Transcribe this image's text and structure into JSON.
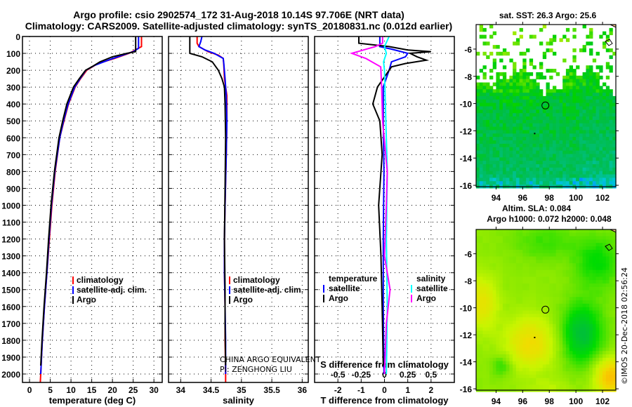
{
  "title_line1": "Argo profile: csio 2902574_172 31-Aug-2018 10.14S 97.706E (NRT data)",
  "title_line2": "Climatology: CARS2009. Satellite-adjusted climatology: synTS_20180831.nc (0.012d earlier)",
  "colors": {
    "climatology": "#ff0000",
    "satellite": "#0000ff",
    "argo": "#000000",
    "sal_satellite": "#00ffff",
    "sal_argo": "#ff00ff"
  },
  "chart_data": [
    {
      "type": "line",
      "id": "temperature",
      "xlabel": "temperature (deg C)",
      "ylabel": "depth",
      "xlim": [
        -1.7,
        32
      ],
      "ylim": [
        2050,
        0
      ],
      "xticks": [
        0,
        5,
        10,
        15,
        20,
        25,
        30
      ],
      "yticks": [
        0,
        100,
        200,
        300,
        400,
        500,
        600,
        700,
        800,
        900,
        1000,
        1100,
        1200,
        1300,
        1400,
        1500,
        1600,
        1700,
        1800,
        1900,
        2000
      ],
      "grid": true,
      "legend": {
        "placement": "lower-middle",
        "entries": [
          "climatology",
          "satellite-adj. clim.",
          "Argo"
        ]
      },
      "series": [
        {
          "name": "climatology",
          "color_key": "climatology",
          "points": [
            [
              0,
              27.0
            ],
            [
              60,
              27.0
            ],
            [
              80,
              25.5
            ],
            [
              100,
              24.0
            ],
            [
              130,
              20.5
            ],
            [
              160,
              16.5
            ],
            [
              200,
              13.8
            ],
            [
              250,
              12.3
            ],
            [
              300,
              11.0
            ],
            [
              400,
              9.4
            ],
            [
              500,
              8.3
            ],
            [
              600,
              7.3
            ],
            [
              800,
              6.2
            ],
            [
              1000,
              5.4
            ],
            [
              1200,
              4.8
            ],
            [
              1400,
              4.2
            ],
            [
              1600,
              3.6
            ],
            [
              1800,
              3.1
            ],
            [
              2000,
              2.7
            ],
            [
              2050,
              2.6
            ]
          ]
        },
        {
          "name": "satellite-adj. clim.",
          "color_key": "satellite",
          "points": [
            [
              0,
              26.3
            ],
            [
              70,
              26.3
            ],
            [
              90,
              25.0
            ],
            [
              110,
              22.5
            ],
            [
              140,
              19.0
            ],
            [
              170,
              15.8
            ],
            [
              200,
              13.6
            ],
            [
              250,
              12.2
            ],
            [
              300,
              10.9
            ],
            [
              400,
              9.3
            ],
            [
              500,
              8.2
            ],
            [
              600,
              7.3
            ],
            [
              800,
              6.1
            ],
            [
              1000,
              5.3
            ],
            [
              1200,
              4.7
            ],
            [
              1400,
              4.2
            ],
            [
              1600,
              3.6
            ],
            [
              1800,
              3.1
            ],
            [
              2000,
              2.7
            ]
          ]
        },
        {
          "name": "Argo",
          "color_key": "argo",
          "points": [
            [
              0,
              25.6
            ],
            [
              90,
              25.6
            ],
            [
              100,
              23.5
            ],
            [
              120,
              20.0
            ],
            [
              150,
              17.0
            ],
            [
              180,
              15.0
            ],
            [
              200,
              13.5
            ],
            [
              250,
              12.0
            ],
            [
              300,
              10.6
            ],
            [
              400,
              9.0
            ],
            [
              500,
              8.0
            ],
            [
              600,
              7.1
            ],
            [
              800,
              6.0
            ],
            [
              1000,
              5.2
            ],
            [
              1200,
              4.6
            ],
            [
              1400,
              4.1
            ],
            [
              1600,
              3.5
            ],
            [
              1800,
              3.0
            ],
            [
              1950,
              2.7
            ]
          ]
        }
      ]
    },
    {
      "type": "line",
      "id": "salinity",
      "xlabel": "salinity",
      "xlim": [
        33.8,
        36.1
      ],
      "ylim": [
        2050,
        0
      ],
      "xticks": [
        34,
        34.5,
        35,
        35.5,
        36
      ],
      "grid": true,
      "legend": {
        "placement": "lower-right",
        "entries": [
          "climatology",
          "satellite-adj. clim.",
          "Argo"
        ]
      },
      "annotation": [
        "CHINA ARGO EQUIVALENT",
        "PI: ZENGHONG LIU"
      ],
      "series": [
        {
          "name": "climatology",
          "color_key": "climatology",
          "points": [
            [
              0,
              34.27
            ],
            [
              40,
              34.27
            ],
            [
              60,
              34.3
            ],
            [
              90,
              34.45
            ],
            [
              110,
              34.62
            ],
            [
              130,
              34.7
            ],
            [
              170,
              34.71
            ],
            [
              250,
              34.72
            ],
            [
              350,
              34.76
            ],
            [
              500,
              34.76
            ],
            [
              700,
              34.75
            ],
            [
              1000,
              34.73
            ],
            [
              1200,
              34.72
            ],
            [
              1400,
              34.72
            ],
            [
              1600,
              34.73
            ],
            [
              1800,
              34.73
            ],
            [
              2000,
              34.74
            ],
            [
              2050,
              34.74
            ]
          ]
        },
        {
          "name": "satellite-adj. clim.",
          "color_key": "satellite",
          "points": [
            [
              0,
              34.35
            ],
            [
              30,
              34.33
            ],
            [
              60,
              34.3
            ],
            [
              80,
              34.4
            ],
            [
              100,
              34.55
            ],
            [
              130,
              34.7
            ],
            [
              160,
              34.71
            ],
            [
              250,
              34.73
            ],
            [
              350,
              34.75
            ],
            [
              500,
              34.76
            ],
            [
              700,
              34.75
            ],
            [
              1000,
              34.73
            ],
            [
              1200,
              34.72
            ],
            [
              1400,
              34.72
            ],
            [
              1600,
              34.73
            ],
            [
              1800,
              34.74
            ],
            [
              2000,
              34.74
            ]
          ]
        },
        {
          "name": "Argo",
          "color_key": "argo",
          "points": [
            [
              0,
              34.15
            ],
            [
              100,
              34.15
            ],
            [
              120,
              34.35
            ],
            [
              150,
              34.52
            ],
            [
              200,
              34.62
            ],
            [
              250,
              34.68
            ],
            [
              300,
              34.72
            ],
            [
              400,
              34.73
            ],
            [
              600,
              34.74
            ],
            [
              900,
              34.73
            ],
            [
              1200,
              34.72
            ],
            [
              1500,
              34.73
            ],
            [
              1700,
              34.73
            ],
            [
              1950,
              34.74
            ]
          ]
        }
      ]
    },
    {
      "type": "line",
      "id": "difference",
      "xlabel": "T difference from climatology",
      "xlabel2": "S difference from climatology",
      "xlim": [
        -3,
        3
      ],
      "x2lim": [
        -0.75,
        0.75
      ],
      "ylim": [
        2050,
        0
      ],
      "xticks": [
        -2,
        -1,
        0,
        1,
        2
      ],
      "x2ticks": [
        -0.5,
        -0.25,
        0,
        0.25,
        0.5
      ],
      "x2ticklabels": [
        "-0.5",
        "-0.25",
        "0",
        "0.25",
        "0.5"
      ],
      "grid": true,
      "legend": {
        "placement": "lower-middle",
        "temperature_title": "temperature",
        "salinity_title": "salinity",
        "entries": [
          "satellite",
          "Argo",
          "satellite",
          "Argo"
        ]
      },
      "series": [
        {
          "name": "T satellite",
          "axis": "T",
          "color_key": "satellite",
          "points": [
            [
              0,
              -0.2
            ],
            [
              60,
              -0.2
            ],
            [
              75,
              0.3
            ],
            [
              100,
              1.0
            ],
            [
              120,
              0.9
            ],
            [
              150,
              0.3
            ],
            [
              200,
              0.2
            ],
            [
              300,
              -0.05
            ],
            [
              500,
              -0.05
            ],
            [
              800,
              -0.02
            ],
            [
              1200,
              -0.05
            ],
            [
              1600,
              -0.05
            ],
            [
              2000,
              -0.02
            ]
          ]
        },
        {
          "name": "T Argo",
          "axis": "T",
          "color_key": "argo",
          "points": [
            [
              0,
              -1.1
            ],
            [
              40,
              -1.1
            ],
            [
              60,
              0.2
            ],
            [
              80,
              1.0
            ],
            [
              90,
              2.0
            ],
            [
              100,
              1.1
            ],
            [
              120,
              1.4
            ],
            [
              140,
              1.8
            ],
            [
              160,
              0.9
            ],
            [
              180,
              0.3
            ],
            [
              220,
              0.1
            ],
            [
              300,
              -0.3
            ],
            [
              400,
              -0.5
            ],
            [
              500,
              -0.2
            ],
            [
              700,
              -0.1
            ],
            [
              1000,
              -0.25
            ],
            [
              1300,
              -0.15
            ],
            [
              1600,
              -0.1
            ],
            [
              1950,
              -0.05
            ]
          ]
        },
        {
          "name": "S satellite",
          "axis": "S",
          "color_key": "sal_satellite",
          "points": [
            [
              0,
              0.05
            ],
            [
              60,
              0.0
            ],
            [
              100,
              0.02
            ],
            [
              150,
              -0.01
            ],
            [
              200,
              0.0
            ],
            [
              400,
              0.01
            ],
            [
              800,
              0.03
            ],
            [
              1200,
              0.02
            ],
            [
              1600,
              0.03
            ],
            [
              2000,
              0.02
            ]
          ]
        },
        {
          "name": "S Argo",
          "axis": "S",
          "color_key": "sal_argo",
          "points": [
            [
              0,
              -0.02
            ],
            [
              40,
              -0.02
            ],
            [
              60,
              -0.1
            ],
            [
              100,
              -0.35
            ],
            [
              130,
              -0.2
            ],
            [
              180,
              -0.04
            ],
            [
              300,
              -0.03
            ],
            [
              500,
              -0.02
            ],
            [
              800,
              0.03
            ],
            [
              1000,
              0.02
            ],
            [
              1300,
              0.0
            ],
            [
              1500,
              0.06
            ],
            [
              1700,
              0.02
            ],
            [
              2000,
              0.0
            ]
          ]
        }
      ]
    },
    {
      "type": "heatmap",
      "id": "sst_map",
      "title": "sat. SST: 26.3 Argo: 25.6",
      "xlim": [
        92.5,
        103
      ],
      "ylim": [
        -16.1,
        -4.2
      ],
      "xticks": [
        94,
        96,
        98,
        100,
        102
      ],
      "yticks": [
        -6,
        -8,
        -10,
        -12,
        -14,
        -16
      ],
      "profile_location": [
        97.706,
        -10.14
      ]
    },
    {
      "type": "heatmap",
      "id": "sla_map",
      "title": "Altim. SLA: 0.084",
      "subtitle": "Argo h1000: 0.072 h2000: 0.048",
      "xlim": [
        92.5,
        103
      ],
      "ylim": [
        -16.1,
        -4.2
      ],
      "xticks": [
        94,
        96,
        98,
        100,
        102
      ],
      "yticks": [
        -6,
        -8,
        -10,
        -12,
        -14,
        -16
      ],
      "profile_location": [
        97.706,
        -10.14
      ]
    }
  ],
  "credit": "©IMOS 20-Dec-2018 02:56:24"
}
